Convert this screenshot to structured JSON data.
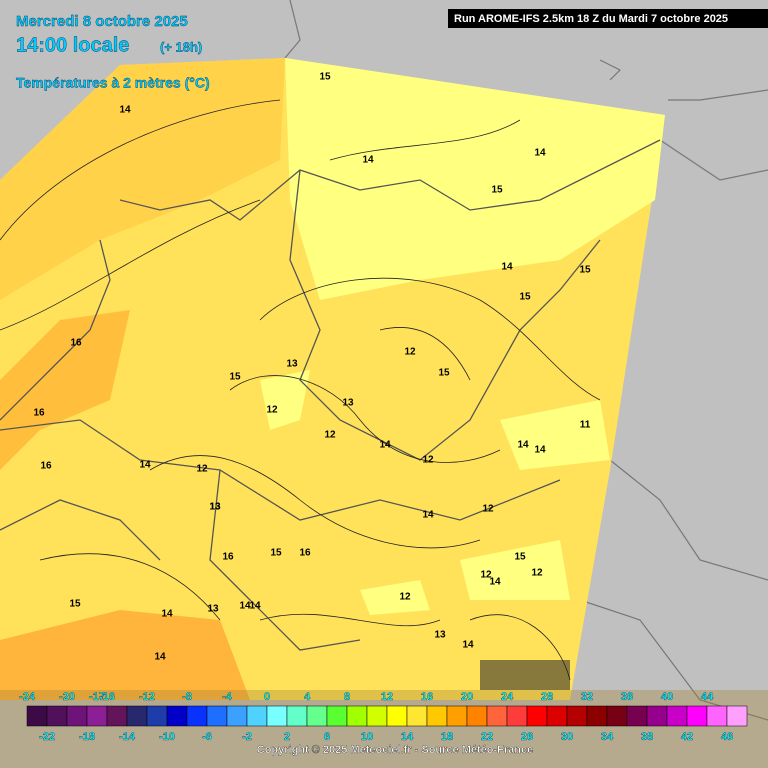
{
  "header": {
    "date": "Mercredi 8 octobre 2025",
    "time": "14:00 locale",
    "lead": "(+ 18h)",
    "variable": "Températures à 2 mètres (°C)",
    "run": "Run AROME-IFS 2.5km 18 Z du Mardi 7 octobre 2025"
  },
  "contour_labels": [
    "15",
    "14",
    "14",
    "14",
    "15",
    "14",
    "15",
    "15",
    "16",
    "16",
    "16",
    "14",
    "12",
    "13",
    "13",
    "15",
    "12",
    "12",
    "13",
    "15",
    "12",
    "11",
    "14",
    "14",
    "14",
    "13",
    "13",
    "14",
    "12",
    "12",
    "12",
    "16",
    "15",
    "16",
    "15",
    "14",
    "14",
    "14",
    "13",
    "12",
    "12",
    "14",
    "14",
    "15",
    "14"
  ],
  "colorbar": {
    "top_labels": [
      -24,
      -20,
      -17,
      -16,
      -12,
      -8,
      -4,
      0,
      4,
      8,
      12,
      16,
      20,
      24,
      28,
      32,
      36,
      40,
      44
    ],
    "bottom_labels": [
      -22,
      -18,
      -14,
      -10,
      -6,
      -2,
      2,
      6,
      10,
      14,
      18,
      22,
      26,
      30,
      34,
      38,
      42,
      46
    ],
    "colors": [
      "#3c0a46",
      "#50105a",
      "#6e1478",
      "#8c1e96",
      "#64145a",
      "#28286e",
      "#1e3caa",
      "#0000c8",
      "#0a32ff",
      "#1e6eff",
      "#3ca0ff",
      "#50d2ff",
      "#78ffff",
      "#64ffc8",
      "#64ff8c",
      "#5aff32",
      "#a0ff00",
      "#d2ff00",
      "#ffff00",
      "#ffe632",
      "#ffc800",
      "#ffa000",
      "#ff8200",
      "#ff643c",
      "#ff3c3c",
      "#ff0000",
      "#dc0000",
      "#b40000",
      "#8c0000",
      "#780014",
      "#780050",
      "#96008c",
      "#c800c8",
      "#ff00ff",
      "#ff64ff",
      "#ffa0ff"
    ]
  },
  "copyright": "Copyright © 2025 Meteociel.fr - Source Météo-France"
}
